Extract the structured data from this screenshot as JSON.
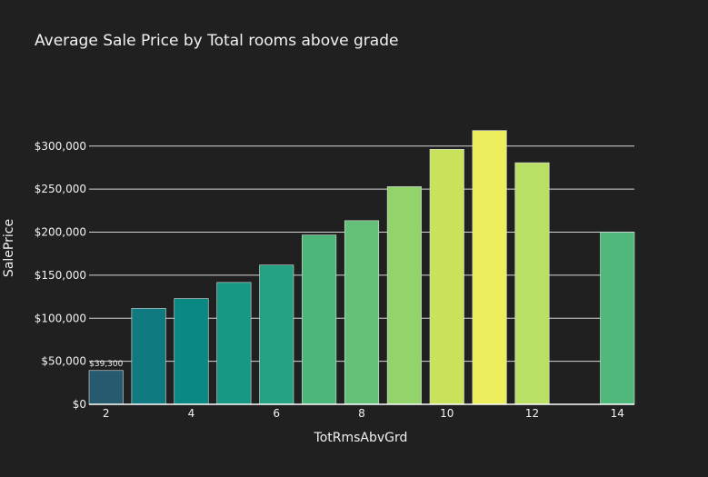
{
  "chart_data": {
    "type": "bar",
    "title": "Average Sale Price by Total rooms above grade",
    "xlabel": "TotRmsAbvGrd",
    "ylabel": "SalePrice",
    "x": [
      2,
      3,
      4,
      5,
      6,
      7,
      8,
      9,
      10,
      11,
      12,
      14
    ],
    "values": [
      39300,
      111500,
      122900,
      141600,
      161800,
      196700,
      213400,
      252900,
      296300,
      318100,
      280700,
      200000
    ],
    "colors": [
      "#255a6f",
      "#0f7b80",
      "#0a8883",
      "#179885",
      "#24a282",
      "#4db77a",
      "#65c178",
      "#92d46b",
      "#c8e35b",
      "#ecee5d",
      "#bbe066",
      "#51b87c"
    ],
    "xlim": [
      1.6,
      14.4
    ],
    "ylim": [
      0,
      380000
    ],
    "x_ticks": [
      2,
      4,
      6,
      8,
      10,
      12,
      14
    ],
    "y_ticks": [
      0,
      50000,
      100000,
      150000,
      200000,
      250000,
      300000
    ],
    "y_tick_labels": [
      "$0",
      "$50,000",
      "$100,000",
      "$150,000",
      "$200,000",
      "$250,000",
      "$300,000"
    ],
    "data_labels": [
      {
        "x": 2,
        "text": "$39,300"
      }
    ],
    "grid": true,
    "legend": "none"
  }
}
